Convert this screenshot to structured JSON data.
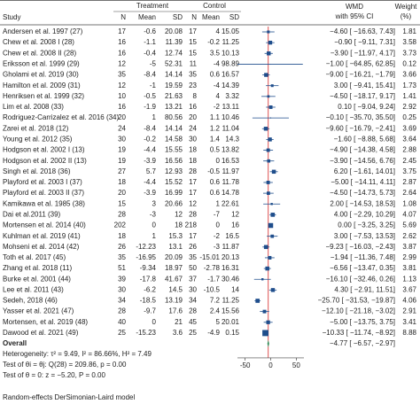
{
  "chart_data": {
    "type": "forest",
    "headers": {
      "study": "Study",
      "treatment": "Treatment",
      "control": "Control",
      "n": "N",
      "mean": "Mean",
      "sd": "SD",
      "wmd": "WMD",
      "ci": "with 95% CI",
      "weight": "Weight",
      "weight_unit": "(%)"
    },
    "rows": [
      {
        "study": "Andersen et al. 1997 (27)",
        "n1": 17,
        "mean1": -0.6,
        "sd1": 20.08,
        "n2": 17,
        "mean2": 4,
        "sd2": 15.05,
        "wmd": -4.6,
        "lo": -16.63,
        "hi": 7.43,
        "wmd_label": "−4.60 [ −16.63, 7.43]",
        "weight": 1.81
      },
      {
        "study": "Chew et al. 2008 I (28)",
        "n1": 16,
        "mean1": -1.1,
        "sd1": 11.39,
        "n2": 15,
        "mean2": -0.2,
        "sd2": 11.25,
        "wmd": -0.9,
        "lo": -9.11,
        "hi": 7.31,
        "wmd_label": "−0.90 [ −9.11, 7.31]",
        "weight": 3.58
      },
      {
        "study": "Chew et al. 2008 II (28)",
        "n1": 16,
        "mean1": -0.4,
        "sd1": 12.74,
        "n2": 15,
        "mean2": 3.5,
        "sd2": 10.13,
        "wmd": -3.9,
        "lo": -11.97,
        "hi": 4.17,
        "wmd_label": "−3.90 [ −11.97, 4.17]",
        "weight": 3.73
      },
      {
        "study": "Eriksson et al. 1999 (29)",
        "n1": 12,
        "mean1": -5,
        "sd1": 52.31,
        "n2": 11,
        "mean2": -4,
        "sd2": 98.89,
        "wmd": -1,
        "lo": -64.85,
        "hi": 62.85,
        "wmd_label": "−1.00 [ −64.85, 62.85]",
        "weight": 0.12
      },
      {
        "study": "Gholami et al. 2019 (30)",
        "n1": 35,
        "mean1": -8.4,
        "sd1": 14.14,
        "n2": 35,
        "mean2": 0.6,
        "sd2": 16.57,
        "wmd": -9,
        "lo": -16.21,
        "hi": -1.79,
        "wmd_label": "−9.00 [ −16.21, −1.79]",
        "weight": 3.66
      },
      {
        "study": "Hamilton et al. 2009 (31)",
        "n1": 12,
        "mean1": -1,
        "sd1": 19.59,
        "n2": 23,
        "mean2": -4,
        "sd2": 14.39,
        "wmd": 3,
        "lo": -9.41,
        "hi": 15.41,
        "wmd_label": "3.00 [ −9.41, 15.41]",
        "weight": 1.73
      },
      {
        "study": "Henriksen et al. 1999 (32)",
        "n1": 10,
        "mean1": -0.5,
        "sd1": 21.63,
        "n2": 8,
        "mean2": 4,
        "sd2": 3.32,
        "wmd": -4.5,
        "lo": -18.17,
        "hi": 9.17,
        "wmd_label": "−4.50 [ −18.17, 9.17]",
        "weight": 1.41
      },
      {
        "study": "Lim et al. 2008 (33)",
        "n1": 16,
        "mean1": -1.9,
        "sd1": 13.21,
        "n2": 16,
        "mean2": -2,
        "sd2": 13.11,
        "wmd": 0.1,
        "lo": -9.04,
        "hi": 9.24,
        "wmd_label": "0.10 [ −9.04, 9.24]",
        "weight": 2.92
      },
      {
        "study": "Rodriguez-Carrizalez et al. 2016 (34)",
        "n1": 20,
        "mean1": 1,
        "sd1": 80.56,
        "n2": 20,
        "mean2": 1.1,
        "sd2": 10.46,
        "wmd": -0.1,
        "lo": -35.7,
        "hi": 35.5,
        "wmd_label": "−0.10 [ −35.70, 35.50]",
        "weight": 0.25
      },
      {
        "study": "Zarei et al. 2018 (12)",
        "n1": 24,
        "mean1": -8.4,
        "sd1": 14.14,
        "n2": 24,
        "mean2": 1.2,
        "sd2": 11.04,
        "wmd": -9.6,
        "lo": -16.79,
        "hi": -2.41,
        "wmd_label": "−9.60 [ −16.79, −2.41]",
        "weight": 3.69
      },
      {
        "study": "Young et al. 2012 (35)",
        "n1": 30,
        "mean1": -0.2,
        "sd1": 14.58,
        "n2": 30,
        "mean2": 1.4,
        "sd2": 14.3,
        "wmd": -1.6,
        "lo": -8.88,
        "hi": 5.68,
        "wmd_label": "−1.60 [ −8.88, 5.68]",
        "weight": 3.64
      },
      {
        "study": "Hodgson et al. 2002 I (13)",
        "n1": 19,
        "mean1": -4.4,
        "sd1": 15.55,
        "n2": 18,
        "mean2": 0.5,
        "sd2": 13.82,
        "wmd": -4.9,
        "lo": -14.38,
        "hi": 4.58,
        "wmd_label": "−4.90 [ −14.38, 4.58]",
        "weight": 2.88
      },
      {
        "study": "Hodgson et al. 2002 II (13)",
        "n1": 19,
        "mean1": -3.9,
        "sd1": 16.56,
        "n2": 18,
        "mean2": 0,
        "sd2": 16.53,
        "wmd": -3.9,
        "lo": -14.56,
        "hi": 6.76,
        "wmd_label": "−3.90 [ −14.56, 6.76]",
        "weight": 2.45
      },
      {
        "study": "Singh et al. 2018 (36)",
        "n1": 27,
        "mean1": 5.7,
        "sd1": 12.93,
        "n2": 28,
        "mean2": -0.5,
        "sd2": 11.97,
        "wmd": 6.2,
        "lo": -1.61,
        "hi": 14.01,
        "wmd_label": "6.20 [ −1.61, 14.01]",
        "weight": 3.75
      },
      {
        "study": "Playford et al. 2003 I (37)",
        "n1": 18,
        "mean1": -4.4,
        "sd1": 15.52,
        "n2": 17,
        "mean2": 0.6,
        "sd2": 11.78,
        "wmd": -5,
        "lo": -14.11,
        "hi": 4.11,
        "wmd_label": "−5.00 [ −14.11, 4.11]",
        "weight": 2.87
      },
      {
        "study": "Playford et al. 2003 II (37)",
        "n1": 20,
        "mean1": -3.9,
        "sd1": 16.99,
        "n2": 17,
        "mean2": 0.6,
        "sd2": 14.78,
        "wmd": -4.5,
        "lo": -14.73,
        "hi": 5.73,
        "wmd_label": "−4.50 [ −14.73, 5.73]",
        "weight": 2.64
      },
      {
        "study": "Kamikawa et al. 1985 (38)",
        "n1": 15,
        "mean1": 3,
        "sd1": 20.66,
        "n2": 12,
        "mean2": 1,
        "sd2": 22.61,
        "wmd": 2,
        "lo": -14.53,
        "hi": 18.53,
        "wmd_label": "2.00 [ −14.53, 18.53]",
        "weight": 1.08
      },
      {
        "study": "Dai et al.2011 (39)",
        "n1": 28,
        "mean1": -3,
        "sd1": 12,
        "n2": 28,
        "mean2": -7,
        "sd2": 12,
        "wmd": 4,
        "lo": -2.29,
        "hi": 10.29,
        "wmd_label": "4.00 [ −2.29, 10.29]",
        "weight": 4.07
      },
      {
        "study": "Mortensen et al. 2014 (40)",
        "n1": 202,
        "mean1": 0,
        "sd1": 18,
        "n2": 218,
        "mean2": 0,
        "sd2": 16,
        "wmd": 0,
        "lo": -3.25,
        "hi": 3.25,
        "wmd_label": "0.00 [ −3.25, 3.25]",
        "weight": 5.69
      },
      {
        "study": "Kuhlman et al. 2019 (41)",
        "n1": 18,
        "mean1": 1,
        "sd1": 15.3,
        "n2": 17,
        "mean2": -2,
        "sd2": 16.5,
        "wmd": 3,
        "lo": -7.53,
        "hi": 13.53,
        "wmd_label": "3.00 [ −7.53, 13.53]",
        "weight": 2.62
      },
      {
        "study": "Mohseni et al. 2014 (42)",
        "n1": 26,
        "mean1": -12.23,
        "sd1": 13.1,
        "n2": 26,
        "mean2": -3,
        "sd2": 11.87,
        "wmd": -9.23,
        "lo": -16.03,
        "hi": -2.43,
        "wmd_label": "−9.23 [ −16.03, −2.43]",
        "weight": 3.87
      },
      {
        "study": "Toth et al. 2017 (45)",
        "n1": 35,
        "mean1": -16.95,
        "sd1": 20.09,
        "n2": 35,
        "mean2": -15.01,
        "sd2": 20.13,
        "wmd": -1.94,
        "lo": -11.36,
        "hi": 7.48,
        "wmd_label": "−1.94 [ −11.36, 7.48]",
        "weight": 2.99
      },
      {
        "study": "Zhang et al. 2018 (11)",
        "n1": 51,
        "mean1": -9.34,
        "sd1": 18.97,
        "n2": 50,
        "mean2": -2.78,
        "sd2": 16.31,
        "wmd": -6.56,
        "lo": -13.47,
        "hi": 0.35,
        "wmd_label": "−6.56 [ −13.47, 0.35]",
        "weight": 3.81
      },
      {
        "study": "Burke et al. 2001 (44)",
        "n1": 39,
        "mean1": -17.8,
        "sd1": 41.67,
        "n2": 37,
        "mean2": -1.7,
        "sd2": 30.46,
        "wmd": -16.1,
        "lo": -32.46,
        "hi": 0.26,
        "wmd_label": "−16.10 [ −32.46, 0.26]",
        "weight": 1.13
      },
      {
        "study": "Lee et al. 2011 (43)",
        "n1": 30,
        "mean1": -6.2,
        "sd1": 14.5,
        "n2": 30,
        "mean2": -10.5,
        "sd2": 14,
        "wmd": 4.3,
        "lo": -2.91,
        "hi": 11.51,
        "wmd_label": "4.30 [ −2.91, 11.51]",
        "weight": 3.67
      },
      {
        "study": "Sedeh, 2018 (46)",
        "n1": 34,
        "mean1": -18.5,
        "sd1": 13.19,
        "n2": 34,
        "mean2": 7.2,
        "sd2": 11.25,
        "wmd": -25.7,
        "lo": -31.53,
        "hi": -19.87,
        "wmd_label": "−25.70 [ −31.53, −19.87]",
        "weight": 4.06
      },
      {
        "study": "Yasser et al. 2021 (47)",
        "n1": 28,
        "mean1": -9.7,
        "sd1": 17.6,
        "n2": 28,
        "mean2": 2.4,
        "sd2": 15.56,
        "wmd": -12.1,
        "lo": -21.18,
        "hi": -3.02,
        "wmd_label": "−12.10 [ −21.18, −3.02]",
        "weight": 2.91
      },
      {
        "study": "Mortensen, et al. 2019 (48)",
        "n1": 40,
        "mean1": 0,
        "sd1": 21,
        "n2": 45,
        "mean2": 5,
        "sd2": 20.01,
        "wmd": -5,
        "lo": -13.75,
        "hi": 3.75,
        "wmd_label": "−5.00 [ −13.75, 3.75]",
        "weight": 3.41
      },
      {
        "study": "Dawood et al. 2021 (49)",
        "n1": 25,
        "mean1": -15.23,
        "sd1": 3.6,
        "n2": 25,
        "mean2": -4.9,
        "sd2": 0.15,
        "wmd": -10.33,
        "lo": -11.74,
        "hi": -8.92,
        "wmd_label": "−10.33 [ −11.74, −8.92]",
        "weight": 8.88
      }
    ],
    "overall": {
      "label": "Overall",
      "wmd": -4.77,
      "lo": -6.57,
      "hi": -2.97,
      "wmd_label": "−4.77 [ −6.57, −2.97]"
    },
    "notes": [
      "Heterogeneity: τ² = 9.49, I² = 86.66%, H² = 7.49",
      "Test of θi = θj: Q(28) = 209.86, p = 0.00",
      "Test of θ = 0: z = −5.20, P = 0.00"
    ],
    "footer": "Random-effects DerSimonian-Laird model",
    "xlim": [
      -65,
      65
    ],
    "xticks": [
      -50,
      0,
      50
    ],
    "box_color": "#1f4e8c",
    "ci_color": "#1f4e8c",
    "overall_color": "#2e8b57",
    "ref_color": "#d62728"
  }
}
